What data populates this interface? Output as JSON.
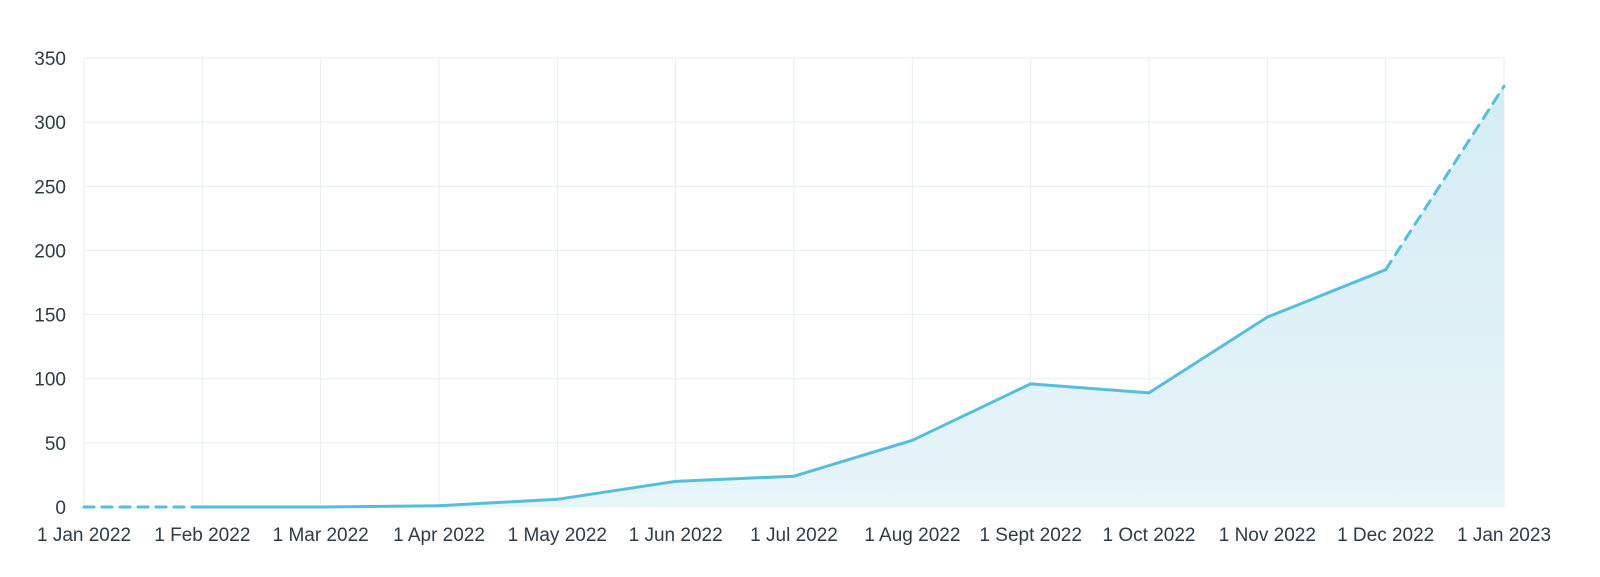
{
  "chart_data": {
    "type": "area",
    "title": "",
    "xlabel": "",
    "ylabel": "",
    "x": [
      "1 Jan 2022",
      "1 Feb 2022",
      "1 Mar 2022",
      "1 Apr 2022",
      "1 May 2022",
      "1 Jun 2022",
      "1 Jul 2022",
      "1 Aug 2022",
      "1 Sept 2022",
      "1 Oct 2022",
      "1 Nov 2022",
      "1 Dec 2022",
      "1 Jan 2023"
    ],
    "x_ticks": [
      "1 Jan 2022",
      "1 Feb 2022",
      "1 Mar 2022",
      "1 Apr 2022",
      "1 May 2022",
      "1 Jun 2022",
      "1 Jul 2022",
      "1 Aug 2022",
      "1 Sept 2022",
      "1 Oct 2022",
      "1 Nov 2022",
      "1 Dec 2022",
      "1 Jan 2023"
    ],
    "y_ticks": [
      "0",
      "50",
      "100",
      "150",
      "200",
      "250",
      "300",
      "350"
    ],
    "series": [
      {
        "values": [
          0,
          0,
          0,
          1,
          6,
          20,
          24,
          52,
          96,
          89,
          148,
          185,
          328
        ],
        "dashed_segments": [
          [
            0,
            1
          ],
          [
            11,
            12
          ]
        ]
      }
    ],
    "ylim": [
      0,
      350
    ],
    "grid": true,
    "legend": "none",
    "colors": {
      "line": "#55bedc",
      "area_top": "#d3ecf3",
      "area_bottom": "#e8f5f9",
      "grid": "#e7eef2",
      "text": "#2d3b45"
    }
  }
}
